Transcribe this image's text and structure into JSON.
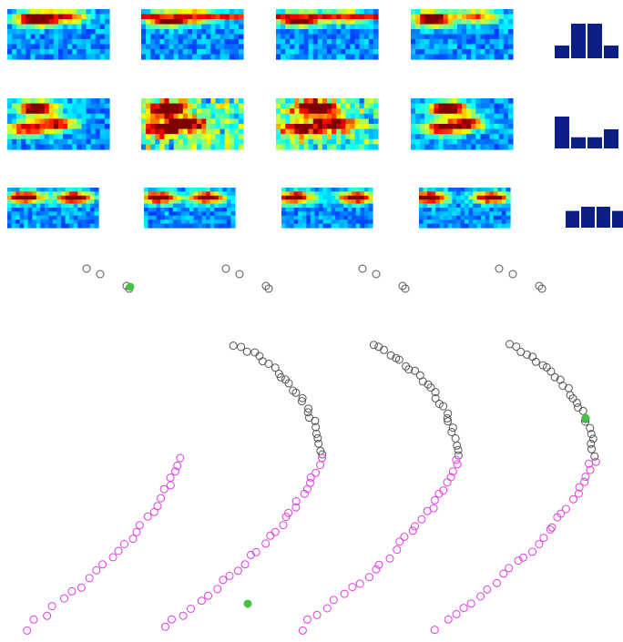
{
  "palette": {
    "background": "#ffffff",
    "heatmap_low": "#0a1a9a",
    "heatmap_high": "#c0171b",
    "bar": "#0b1f86",
    "curve_upper": "#555555",
    "curve_lower": "#e23ce2",
    "marker": "#46c246"
  },
  "heatmap_rows": [
    {
      "seeds": [
        11,
        12,
        13,
        14
      ]
    },
    {
      "seeds": [
        21,
        22,
        23,
        24
      ]
    },
    {
      "seeds": [
        31,
        32,
        33,
        34
      ]
    }
  ],
  "histograms": [
    {
      "values": [
        0.35,
        0.95,
        0.95,
        0.35
      ]
    },
    {
      "values": [
        1.0,
        0.35,
        0.35,
        0.6
      ]
    },
    {
      "values": [
        0.8,
        1.0,
        1.0,
        0.8
      ]
    }
  ],
  "trajectories": [
    {
      "upper_points": 6,
      "lower_points": 26,
      "marker_on": "upper"
    },
    {
      "upper_points": 30,
      "lower_points": 28,
      "marker_on": "lower"
    },
    {
      "upper_points": 30,
      "lower_points": 28,
      "marker_on": "none"
    },
    {
      "upper_points": 30,
      "lower_points": 28,
      "marker_on": "upper"
    }
  ],
  "icons": [
    "heatmap-icon",
    "histogram-icon",
    "scatter-point-icon"
  ]
}
